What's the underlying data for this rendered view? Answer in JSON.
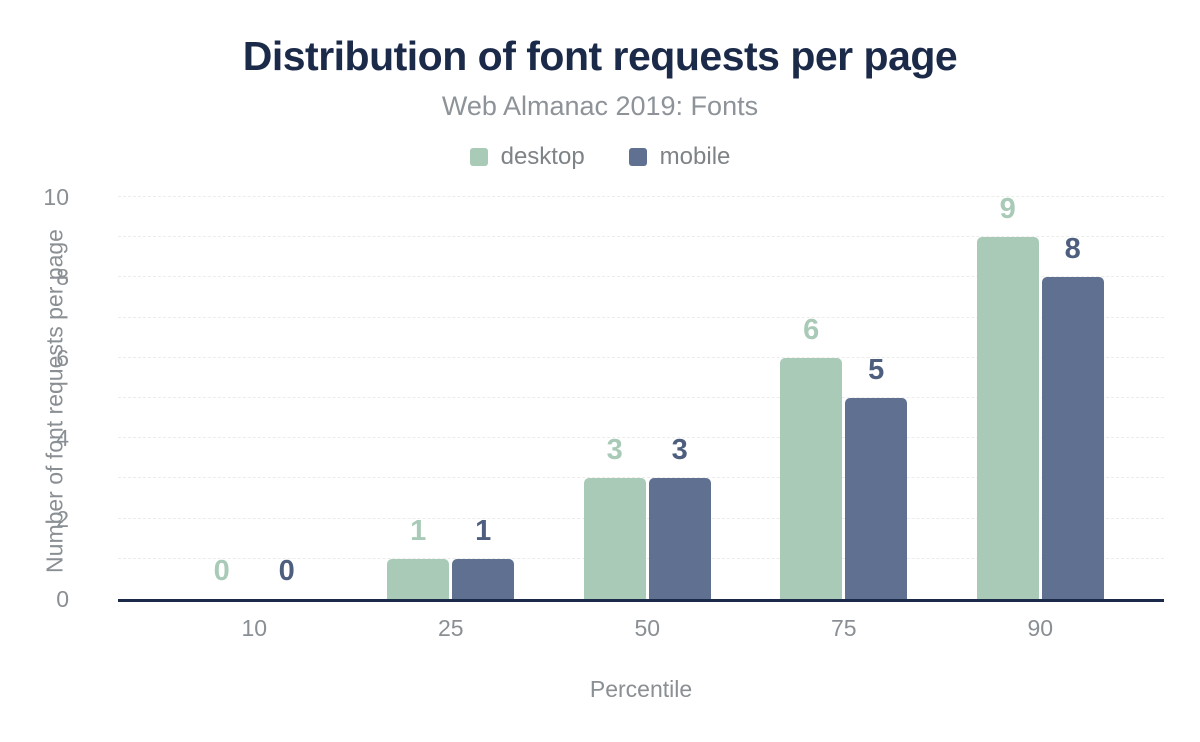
{
  "header": {
    "title": "Distribution of font requests per page",
    "subtitle": "Web Almanac 2019: Fonts"
  },
  "legend": {
    "position": "top",
    "items": [
      {
        "label": "desktop",
        "color": "#a8cab7"
      },
      {
        "label": "mobile",
        "color": "#5f7090"
      }
    ]
  },
  "chart_data": {
    "type": "bar",
    "title": "Distribution of font requests per page",
    "subtitle": "Web Almanac 2019: Fonts",
    "categories": [
      "10",
      "25",
      "50",
      "75",
      "90"
    ],
    "series": [
      {
        "name": "desktop",
        "values": [
          0,
          1,
          3,
          6,
          9
        ],
        "color": "#a8cab7",
        "value_label_color": "#a8cab7"
      },
      {
        "name": "mobile",
        "values": [
          0,
          1,
          3,
          5,
          8
        ],
        "color": "#5f7090",
        "value_label_color": "#4d5e7e"
      }
    ],
    "xlabel": "Percentile",
    "ylabel": "Number of font requests per page",
    "ylim": [
      0,
      10
    ],
    "yticks": [
      0,
      2,
      4,
      6,
      8,
      10
    ],
    "grid": "dashed horizontal line at every 1 unit",
    "value_labels": "shown above each bar",
    "legend_position": "top center"
  },
  "colors": {
    "title": "#1b2a49",
    "subtitle": "#8d9398",
    "axis_text": "#8a8f94",
    "baseline": "#1b2a49",
    "gridline": "#ececec",
    "background": "#ffffff"
  }
}
